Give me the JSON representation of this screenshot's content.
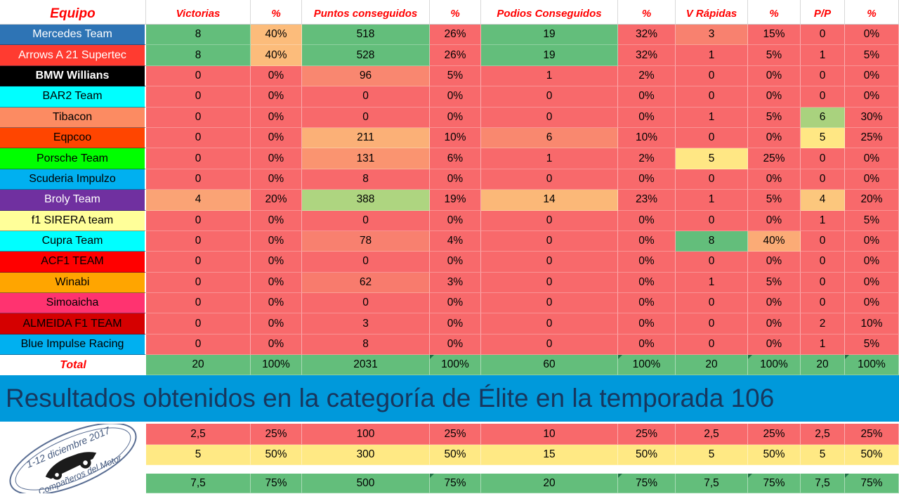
{
  "columns": [
    "Equipo",
    "Victorias",
    "%",
    "Puntos conseguidos",
    "%",
    "Podios Conseguidos",
    "%",
    "V Rápidas",
    "%",
    "P/P",
    "%"
  ],
  "teams": [
    {
      "name": "Mercedes Team",
      "bg": "#2E74B5",
      "fg": "#FFFFFF",
      "bold": false,
      "values": [
        "8",
        "40%",
        "518",
        "26%",
        "19",
        "32%",
        "3",
        "15%",
        "0",
        "0%"
      ],
      "colors": [
        "#63BE7B",
        "#FCBC7B",
        "#63BE7B",
        "#F8696B",
        "#63BE7B",
        "#F8696B",
        "#F8816F",
        "#F8696B",
        "#F8696B",
        "#F8696B"
      ]
    },
    {
      "name": "Arrows A 21 Supertec",
      "bg": "#FF3B30",
      "fg": "#FFFFFF",
      "bold": false,
      "values": [
        "8",
        "40%",
        "528",
        "26%",
        "19",
        "32%",
        "1",
        "5%",
        "1",
        "5%"
      ],
      "colors": [
        "#63BE7B",
        "#FCBC7B",
        "#63BE7B",
        "#F8696B",
        "#63BE7B",
        "#F8696B",
        "#F8696B",
        "#F8696B",
        "#F8696B",
        "#F8696B"
      ]
    },
    {
      "name": "BMW Willians",
      "bg": "#000000",
      "fg": "#FFFFFF",
      "bold": true,
      "values": [
        "0",
        "0%",
        "96",
        "5%",
        "1",
        "2%",
        "0",
        "0%",
        "0",
        "0%"
      ],
      "colors": [
        "#F8696B",
        "#F8696B",
        "#F98770",
        "#F8696B",
        "#F8696B",
        "#F8696B",
        "#F8696B",
        "#F8696B",
        "#F8696B",
        "#F8696B"
      ]
    },
    {
      "name": "BAR2 Team",
      "bg": "#00FFFF",
      "fg": "#000000",
      "bold": false,
      "values": [
        "0",
        "0%",
        "0",
        "0%",
        "0",
        "0%",
        "0",
        "0%",
        "0",
        "0%"
      ],
      "colors": [
        "#F8696B",
        "#F8696B",
        "#F8696B",
        "#F8696B",
        "#F8696B",
        "#F8696B",
        "#F8696B",
        "#F8696B",
        "#F8696B",
        "#F8696B"
      ]
    },
    {
      "name": "Tibacon",
      "bg": "#FC8B62",
      "fg": "#000000",
      "bold": false,
      "values": [
        "0",
        "0%",
        "0",
        "0%",
        "0",
        "0%",
        "1",
        "5%",
        "6",
        "30%"
      ],
      "colors": [
        "#F8696B",
        "#F8696B",
        "#F8696B",
        "#F8696B",
        "#F8696B",
        "#F8696B",
        "#F8696B",
        "#F8696B",
        "#A9D27E",
        "#F8696B"
      ]
    },
    {
      "name": "Eqpcoo",
      "bg": "#FF4500",
      "fg": "#000000",
      "bold": false,
      "values": [
        "0",
        "0%",
        "211",
        "10%",
        "6",
        "10%",
        "0",
        "0%",
        "5",
        "25%"
      ],
      "colors": [
        "#F8696B",
        "#F8696B",
        "#FBB077",
        "#F8696B",
        "#F9886F",
        "#F8696B",
        "#F8696B",
        "#F8696B",
        "#FFE784",
        "#F8696B"
      ]
    },
    {
      "name": "Porsche Team",
      "bg": "#00FF00",
      "fg": "#000000",
      "bold": false,
      "values": [
        "0",
        "0%",
        "131",
        "6%",
        "1",
        "2%",
        "5",
        "25%",
        "0",
        "0%"
      ],
      "colors": [
        "#F8696B",
        "#F8696B",
        "#FA9470",
        "#F8696B",
        "#F8696B",
        "#F8696B",
        "#FFE784",
        "#F8696B",
        "#F8696B",
        "#F8696B"
      ]
    },
    {
      "name": "Scuderia Impulzo",
      "bg": "#00B0F0",
      "fg": "#000000",
      "bold": false,
      "values": [
        "0",
        "0%",
        "8",
        "0%",
        "0",
        "0%",
        "0",
        "0%",
        "0",
        "0%"
      ],
      "colors": [
        "#F8696B",
        "#F8696B",
        "#F8696B",
        "#F8696B",
        "#F8696B",
        "#F8696B",
        "#F8696B",
        "#F8696B",
        "#F8696B",
        "#F8696B"
      ]
    },
    {
      "name": "Broly Team",
      "bg": "#7030A0",
      "fg": "#FFFFFF",
      "bold": false,
      "values": [
        "4",
        "20%",
        "388",
        "19%",
        "14",
        "23%",
        "1",
        "5%",
        "4",
        "20%"
      ],
      "colors": [
        "#FAA375",
        "#F8696B",
        "#AED580",
        "#F8696B",
        "#FBB878",
        "#F8696B",
        "#F8696B",
        "#F8696B",
        "#FCC77D",
        "#F8696B"
      ]
    },
    {
      "name": "f1 SIRERA team",
      "bg": "#FFFF99",
      "fg": "#000000",
      "bold": false,
      "values": [
        "0",
        "0%",
        "0",
        "0%",
        "0",
        "0%",
        "0",
        "0%",
        "1",
        "5%"
      ],
      "colors": [
        "#F8696B",
        "#F8696B",
        "#F8696B",
        "#F8696B",
        "#F8696B",
        "#F8696B",
        "#F8696B",
        "#F8696B",
        "#F8696B",
        "#F8696B"
      ]
    },
    {
      "name": "Cupra Team",
      "bg": "#00FFFF",
      "fg": "#000000",
      "bold": false,
      "values": [
        "0",
        "0%",
        "78",
        "4%",
        "0",
        "0%",
        "8",
        "40%",
        "0",
        "0%"
      ],
      "colors": [
        "#F8696B",
        "#F8696B",
        "#F8806F",
        "#F8696B",
        "#F8696B",
        "#F8696B",
        "#63BE7B",
        "#FBAB76",
        "#F8696B",
        "#F8696B"
      ]
    },
    {
      "name": "ACF1 TEAM",
      "bg": "#FF0000",
      "fg": "#000000",
      "bold": false,
      "values": [
        "0",
        "0%",
        "0",
        "0%",
        "0",
        "0%",
        "0",
        "0%",
        "0",
        "0%"
      ],
      "colors": [
        "#F8696B",
        "#F8696B",
        "#F8696B",
        "#F8696B",
        "#F8696B",
        "#F8696B",
        "#F8696B",
        "#F8696B",
        "#F8696B",
        "#F8696B"
      ]
    },
    {
      "name": "Winabi",
      "bg": "#FFA500",
      "fg": "#000000",
      "bold": false,
      "values": [
        "0",
        "0%",
        "62",
        "3%",
        "0",
        "0%",
        "1",
        "5%",
        "0",
        "0%"
      ],
      "colors": [
        "#F8696B",
        "#F8696B",
        "#F87B6D",
        "#F8696B",
        "#F8696B",
        "#F8696B",
        "#F8696B",
        "#F8696B",
        "#F8696B",
        "#F8696B"
      ]
    },
    {
      "name": "Simoaicha",
      "bg": "#FF3370",
      "fg": "#000000",
      "bold": false,
      "values": [
        "0",
        "0%",
        "0",
        "0%",
        "0",
        "0%",
        "0",
        "0%",
        "0",
        "0%"
      ],
      "colors": [
        "#F8696B",
        "#F8696B",
        "#F8696B",
        "#F8696B",
        "#F8696B",
        "#F8696B",
        "#F8696B",
        "#F8696B",
        "#F8696B",
        "#F8696B"
      ]
    },
    {
      "name": "ALMEIDA F1 TEAM",
      "bg": "#D50000",
      "fg": "#000000",
      "bold": false,
      "values": [
        "0",
        "0%",
        "3",
        "0%",
        "0",
        "0%",
        "0",
        "0%",
        "2",
        "10%"
      ],
      "colors": [
        "#F8696B",
        "#F8696B",
        "#F8696B",
        "#F8696B",
        "#F8696B",
        "#F8696B",
        "#F8696B",
        "#F8696B",
        "#F8696B",
        "#F8696B"
      ]
    },
    {
      "name": "Blue Impulse Racing",
      "bg": "#00B0F0",
      "fg": "#000000",
      "bold": false,
      "values": [
        "0",
        "0%",
        "8",
        "0%",
        "0",
        "0%",
        "0",
        "0%",
        "1",
        "5%"
      ],
      "colors": [
        "#F8696B",
        "#F8696B",
        "#F8696B",
        "#F8696B",
        "#F8696B",
        "#F8696B",
        "#F8696B",
        "#F8696B",
        "#F8696B",
        "#F8696B"
      ]
    }
  ],
  "total": {
    "label": "Total",
    "values": [
      "20",
      "100%",
      "2031",
      "100%",
      "60",
      "100%",
      "20",
      "100%",
      "20",
      "100%"
    ],
    "bg": "#63BE7B",
    "markers": [
      3,
      5,
      7,
      9
    ]
  },
  "banner": {
    "text": "Resultados obtenidos en la categoría de Élite en la temporada 106",
    "bg": "#0099DB",
    "fg": "#17375E"
  },
  "legend": [
    {
      "bg": "#F8696B",
      "values": [
        "2,5",
        "25%",
        "100",
        "25%",
        "10",
        "25%",
        "2,5",
        "25%",
        "2,5",
        "25%"
      ],
      "markers": []
    },
    {
      "bg": "#FFE984",
      "values": [
        "5",
        "50%",
        "300",
        "50%",
        "15",
        "50%",
        "5",
        "50%",
        "5",
        "50%"
      ],
      "markers": []
    },
    {
      "bg": "#63BE7B",
      "values": [
        "7,5",
        "75%",
        "500",
        "75%",
        "20",
        "75%",
        "7,5",
        "75%",
        "7,5",
        "75%"
      ],
      "markers": [
        3,
        5,
        7,
        9
      ]
    }
  ],
  "stamp": {
    "line1": "1-12 diciembre 2017",
    "line2": "Compañeros del Motor"
  }
}
